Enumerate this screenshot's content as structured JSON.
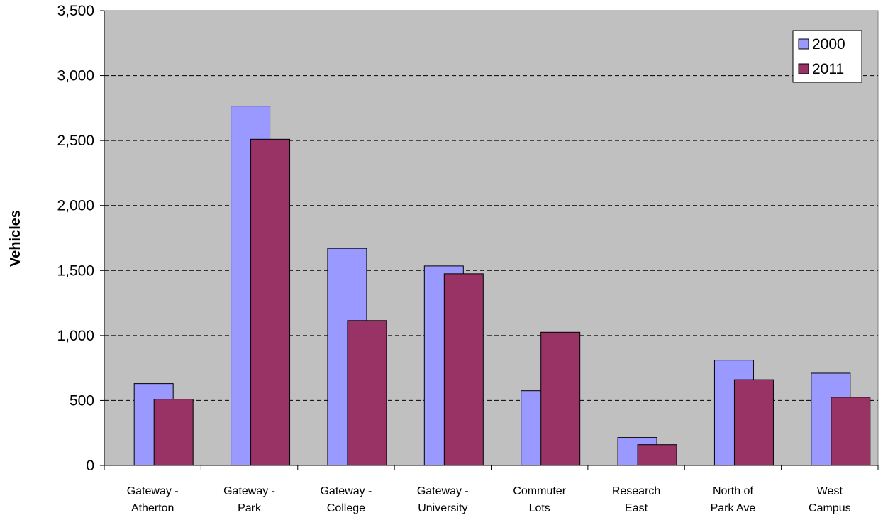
{
  "chart_data": {
    "type": "bar",
    "title": "",
    "xlabel": "",
    "ylabel": "Vehicles",
    "ylim": [
      0,
      3500
    ],
    "yticks": [
      0,
      500,
      1000,
      1500,
      2000,
      2500,
      3000,
      3500
    ],
    "ytick_labels": [
      "0",
      "500",
      "1,000",
      "1,500",
      "2,000",
      "2,500",
      "3,000",
      "3,500"
    ],
    "grid": "horizontal dashed",
    "legend_position": "top-right",
    "categories": [
      [
        "Gateway -",
        "Atherton"
      ],
      [
        "Gateway -",
        "Park"
      ],
      [
        "Gateway -",
        "College"
      ],
      [
        "Gateway -",
        "University"
      ],
      [
        "Commuter",
        "Lots"
      ],
      [
        "Research",
        "East"
      ],
      [
        "North of",
        "Park Ave"
      ],
      [
        "West",
        "Campus"
      ]
    ],
    "series": [
      {
        "name": "2000",
        "color": "#9999ff",
        "values": [
          630,
          2765,
          1670,
          1535,
          575,
          215,
          810,
          710
        ]
      },
      {
        "name": "2011",
        "color": "#993366",
        "values": [
          510,
          2510,
          1115,
          1475,
          1025,
          160,
          660,
          525
        ]
      }
    ],
    "plot_background": "#c0c0c0"
  }
}
